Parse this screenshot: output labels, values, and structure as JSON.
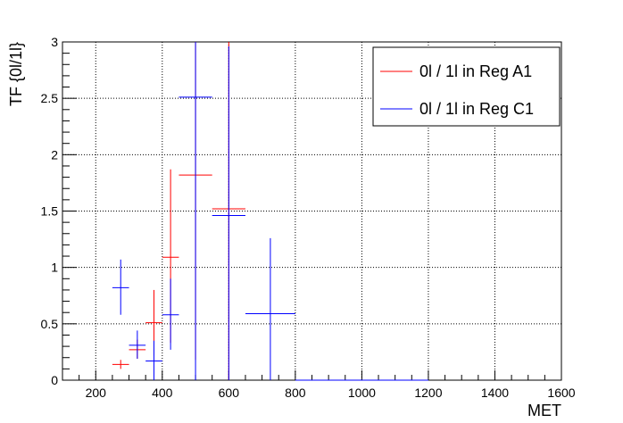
{
  "chart_data": {
    "type": "scatter",
    "title": "",
    "xlabel": "MET",
    "ylabel": "TF  {0l/1l}",
    "xlim": [
      100,
      1600
    ],
    "ylim": [
      0,
      3
    ],
    "x_ticks": [
      200,
      400,
      600,
      800,
      1000,
      1200,
      1400,
      1600
    ],
    "y_ticks": [
      0,
      0.5,
      1,
      1.5,
      2,
      2.5,
      3
    ],
    "x_tick_labels": [
      "200",
      "400",
      "600",
      "800",
      "1000",
      "1200",
      "1400",
      "1600"
    ],
    "y_tick_labels": [
      "0",
      "0.5",
      "1",
      "1.5",
      "2",
      "2.5",
      "3"
    ],
    "grid": true,
    "legend_position": "top-right",
    "series": [
      {
        "name": "0l / 1l in Reg A1",
        "color": "#ff0000",
        "points": [
          {
            "x": 275,
            "xerr": 25,
            "y": 0.14,
            "ylow": 0.1,
            "yhigh": 0.18
          },
          {
            "x": 325,
            "xerr": 25,
            "y": 0.27,
            "ylow": 0.19,
            "yhigh": 0.36
          },
          {
            "x": 375,
            "xerr": 25,
            "y": 0.51,
            "ylow": 0.22,
            "yhigh": 0.8
          },
          {
            "x": 425,
            "xerr": 25,
            "y": 1.09,
            "ylow": 0.33,
            "yhigh": 1.87
          },
          {
            "x": 500,
            "xerr": 50,
            "y": 1.82,
            "ylow": 0.18,
            "yhigh": 3.0
          },
          {
            "x": 600,
            "xerr": 50,
            "y": 1.52,
            "ylow": 0.0,
            "yhigh": 3.0
          }
        ]
      },
      {
        "name": "0l / 1l in Reg C1",
        "color": "#0000ff",
        "points": [
          {
            "x": 275,
            "xerr": 25,
            "y": 0.82,
            "ylow": 0.58,
            "yhigh": 1.07
          },
          {
            "x": 325,
            "xerr": 25,
            "y": 0.31,
            "ylow": 0.19,
            "yhigh": 0.44
          },
          {
            "x": 375,
            "xerr": 25,
            "y": 0.17,
            "ylow": 0.0,
            "yhigh": 0.35
          },
          {
            "x": 425,
            "xerr": 25,
            "y": 0.58,
            "ylow": 0.27,
            "yhigh": 0.9
          },
          {
            "x": 500,
            "xerr": 50,
            "y": 2.51,
            "ylow": 0.0,
            "yhigh": 3.0
          },
          {
            "x": 600,
            "xerr": 50,
            "y": 1.46,
            "ylow": 0.0,
            "yhigh": 2.96
          },
          {
            "x": 725,
            "xerr": 75,
            "y": 0.59,
            "ylow": 0.0,
            "yhigh": 1.26
          },
          {
            "x": 1000,
            "xerr": 200,
            "y": 0.0,
            "ylow": 0.0,
            "yhigh": 0.0
          }
        ]
      }
    ]
  }
}
